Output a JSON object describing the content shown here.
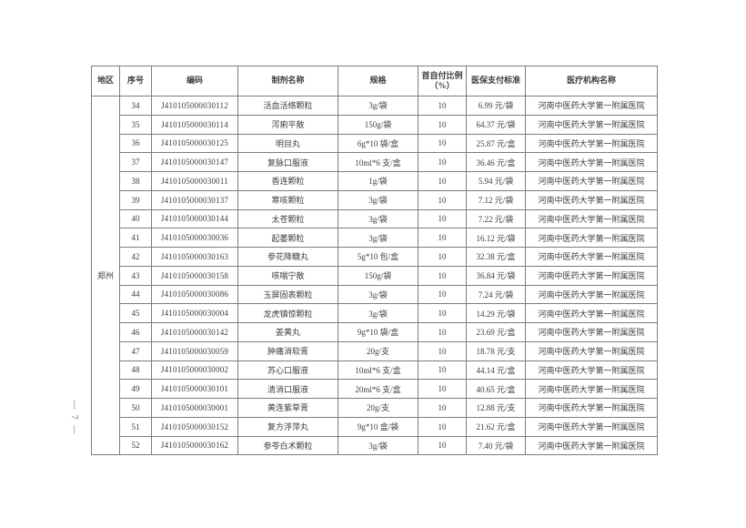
{
  "page": {
    "side_page_number": "— 7 —"
  },
  "table": {
    "region_label": "郑州",
    "columns": [
      "地区",
      "序号",
      "编码",
      "制剂名称",
      "规格",
      "首自付比例（%）",
      "医保支付标准",
      "医疗机构名称"
    ],
    "rows": [
      {
        "no": "34",
        "code": "J410105000030112",
        "name": "活血活络颗粒",
        "spec": "3g/袋",
        "ratio": "10",
        "price": "6.99 元/袋",
        "org": "河南中医药大学第一附属医院"
      },
      {
        "no": "35",
        "code": "J410105000030114",
        "name": "泻痢平散",
        "spec": "150g/袋",
        "ratio": "10",
        "price": "64.37 元/袋",
        "org": "河南中医药大学第一附属医院"
      },
      {
        "no": "36",
        "code": "J410105000030125",
        "name": "明目丸",
        "spec": "6g*10 袋/盒",
        "ratio": "10",
        "price": "25.87 元/盒",
        "org": "河南中医药大学第一附属医院"
      },
      {
        "no": "37",
        "code": "J410105000030147",
        "name": "复脉口服液",
        "spec": "10ml*6 支/盒",
        "ratio": "10",
        "price": "36.46 元/盒",
        "org": "河南中医药大学第一附属医院"
      },
      {
        "no": "38",
        "code": "J410105000030011",
        "name": "香连颗粒",
        "spec": "1g/袋",
        "ratio": "10",
        "price": "5.94 元/袋",
        "org": "河南中医药大学第一附属医院"
      },
      {
        "no": "39",
        "code": "J410105000030137",
        "name": "寒咳颗粒",
        "spec": "3g/袋",
        "ratio": "10",
        "price": "7.12 元/袋",
        "org": "河南中医药大学第一附属医院"
      },
      {
        "no": "40",
        "code": "J410105000030144",
        "name": "太苍颗粒",
        "spec": "3g/袋",
        "ratio": "10",
        "price": "7.22 元/袋",
        "org": "河南中医药大学第一附属医院"
      },
      {
        "no": "41",
        "code": "J410105000030036",
        "name": "起萎颗粒",
        "spec": "3g/袋",
        "ratio": "10",
        "price": "16.12 元/袋",
        "org": "河南中医药大学第一附属医院"
      },
      {
        "no": "42",
        "code": "J410105000030163",
        "name": "参花降糖丸",
        "spec": "5g*10 包/盒",
        "ratio": "10",
        "price": "32.38 元/盒",
        "org": "河南中医药大学第一附属医院"
      },
      {
        "no": "43",
        "code": "J410105000030158",
        "name": "咳喘宁散",
        "spec": "150g/袋",
        "ratio": "10",
        "price": "36.84 元/袋",
        "org": "河南中医药大学第一附属医院"
      },
      {
        "no": "44",
        "code": "J410105000030086",
        "name": "玉屏固表颗粒",
        "spec": "3g/袋",
        "ratio": "10",
        "price": "7.24 元/袋",
        "org": "河南中医药大学第一附属医院"
      },
      {
        "no": "45",
        "code": "J410105000030004",
        "name": "龙虎镇惊颗粒",
        "spec": "3g/袋",
        "ratio": "10",
        "price": "14.29 元/袋",
        "org": "河南中医药大学第一附属医院"
      },
      {
        "no": "46",
        "code": "J410105000030142",
        "name": "姜黄丸",
        "spec": "9g*10 袋/盒",
        "ratio": "10",
        "price": "23.69 元/盒",
        "org": "河南中医药大学第一附属医院"
      },
      {
        "no": "47",
        "code": "J410105000030059",
        "name": "肿痛消软膏",
        "spec": "20g/支",
        "ratio": "10",
        "price": "18.78 元/支",
        "org": "河南中医药大学第一附属医院"
      },
      {
        "no": "48",
        "code": "J410105000030002",
        "name": "苏心口服液",
        "spec": "10ml*6 支/盒",
        "ratio": "10",
        "price": "44.14 元/盒",
        "org": "河南中医药大学第一附属医院"
      },
      {
        "no": "49",
        "code": "J410105000030101",
        "name": "清消口服液",
        "spec": "20ml*6 支/盒",
        "ratio": "10",
        "price": "40.65 元/盒",
        "org": "河南中医药大学第一附属医院"
      },
      {
        "no": "50",
        "code": "J410105000030001",
        "name": "黄连紫草膏",
        "spec": "20g/支",
        "ratio": "10",
        "price": "12.88 元/支",
        "org": "河南中医药大学第一附属医院"
      },
      {
        "no": "51",
        "code": "J410105000030152",
        "name": "复方浮萍丸",
        "spec": "9g*10 盒/袋",
        "ratio": "10",
        "price": "21.62 元/盒",
        "org": "河南中医药大学第一附属医院"
      },
      {
        "no": "52",
        "code": "J410105000030162",
        "name": "参苓白术颗粒",
        "spec": "3g/袋",
        "ratio": "10",
        "price": "7.40 元/袋",
        "org": "河南中医药大学第一附属医院"
      }
    ]
  }
}
